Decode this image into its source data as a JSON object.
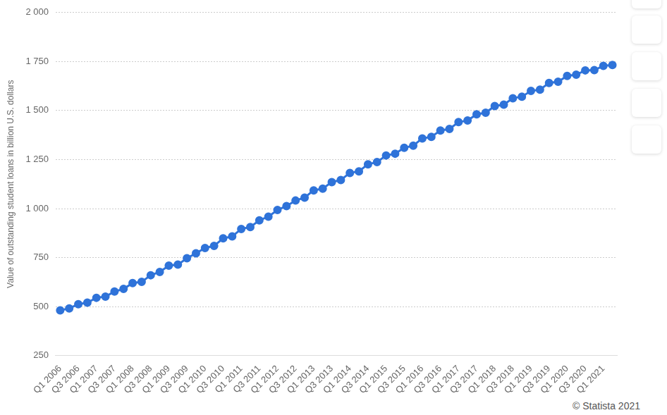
{
  "chart_data": {
    "type": "line",
    "y_label": "Value of outstanding student loans in billion U.S. dollars",
    "credit": "© Statista 2021",
    "categories": [
      "Q1 2006",
      null,
      "Q3 2006",
      null,
      "Q1 2007",
      null,
      "Q3 2007",
      null,
      "Q1 2008",
      null,
      "Q3 2008",
      null,
      "Q1 2009",
      null,
      "Q3 2009",
      null,
      "Q1 2010",
      null,
      "Q3 2010",
      null,
      "Q1 2011",
      null,
      "Q3 2011",
      null,
      "Q1 2012",
      null,
      "Q3 2012",
      null,
      "Q1 2013",
      null,
      "Q3 2013",
      null,
      "Q1 2014",
      null,
      "Q3 2014",
      null,
      "Q1 2015",
      null,
      "Q3 2015",
      null,
      "Q1 2016",
      null,
      "Q3 2016",
      null,
      "Q1 2017",
      null,
      "Q3 2017",
      null,
      "Q1 2018",
      null,
      "Q3 2018",
      null,
      "Q1 2019",
      null,
      "Q3 2019",
      null,
      "Q1 2020",
      null,
      "Q3 2020",
      null,
      "Q1 2021",
      null
    ],
    "values": [
      481,
      491,
      512,
      520,
      545,
      551,
      577,
      590,
      620,
      626,
      660,
      677,
      709,
      714,
      747,
      772,
      799,
      810,
      848,
      858,
      896,
      906,
      940,
      959,
      993,
      1013,
      1041,
      1056,
      1093,
      1102,
      1135,
      1146,
      1182,
      1190,
      1226,
      1237,
      1271,
      1280,
      1310,
      1321,
      1358,
      1366,
      1398,
      1406,
      1441,
      1449,
      1481,
      1489,
      1523,
      1530,
      1563,
      1571,
      1600,
      1607,
      1641,
      1647,
      1677,
      1683,
      1705,
      1706,
      1728,
      1732
    ],
    "color": "#2f73d9",
    "marker": "circle",
    "ylim": [
      250,
      2000
    ],
    "yticks": [
      250,
      500,
      750,
      {
        "value": 1000,
        "label": "1 000"
      },
      {
        "value": 1250,
        "label": "1 250"
      },
      {
        "value": 1500,
        "label": "1 500"
      },
      {
        "value": 1750,
        "label": "1 750"
      },
      {
        "value": 2000,
        "label": "2 000"
      }
    ],
    "grid": true
  }
}
